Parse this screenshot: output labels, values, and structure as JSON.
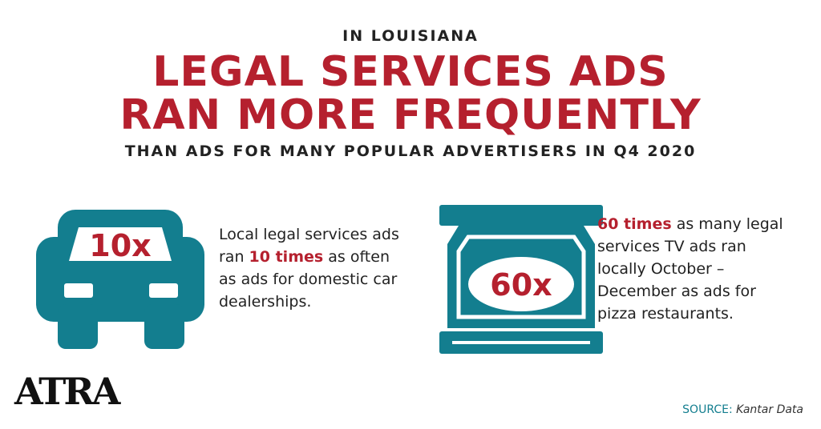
{
  "header": {
    "kicker": "IN LOUISIANA",
    "title": [
      "LEGAL SERVICES ADS",
      "RAN MORE FREQUENTLY"
    ],
    "subtitle": "THAN ADS FOR MANY POPULAR ADVERTISERS IN Q4 2020"
  },
  "facts": [
    {
      "badge": "10x",
      "before": "Local legal services ads ran",
      "highlight": "10 times",
      "after": "as often as ads for domestic car dealerships."
    },
    {
      "badge": "60x",
      "highlight": "60 times",
      "after": "as many legal services TV ads ran locally October – December as ads for pizza restaurants."
    }
  ],
  "footer": {
    "logo": "ATRA",
    "source_label": "SOURCE:",
    "source": "Kantar Data"
  }
}
